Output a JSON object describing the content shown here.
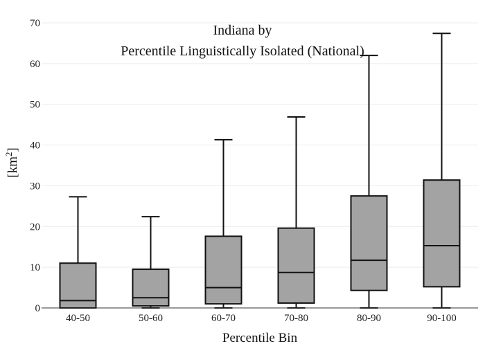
{
  "chart_data": {
    "type": "box",
    "title_lines": [
      "Indiana  by",
      "Percentile Linguistically Isolated (National)"
    ],
    "xlabel": "Percentile Bin",
    "ylabel_base": "[km",
    "ylabel_sup": "2",
    "ylabel_end": "]",
    "ylim": [
      0,
      70
    ],
    "yticks": [
      0,
      10,
      20,
      30,
      40,
      50,
      60,
      70
    ],
    "grid": true,
    "categories": [
      "40-50",
      "50-60",
      "60-70",
      "70-80",
      "80-90",
      "90-100"
    ],
    "boxes": [
      {
        "whisker_low": 0,
        "q1": 0.0,
        "median": 1.8,
        "q3": 11.0,
        "whisker_high": 27.3
      },
      {
        "whisker_low": 0,
        "q1": 0.5,
        "median": 2.5,
        "q3": 9.5,
        "whisker_high": 22.4
      },
      {
        "whisker_low": 0,
        "q1": 1.0,
        "median": 5.0,
        "q3": 17.6,
        "whisker_high": 41.3
      },
      {
        "whisker_low": 0,
        "q1": 1.2,
        "median": 8.7,
        "q3": 19.6,
        "whisker_high": 46.9
      },
      {
        "whisker_low": 0,
        "q1": 4.3,
        "median": 11.7,
        "q3": 27.5,
        "whisker_high": 62.0
      },
      {
        "whisker_low": 0,
        "q1": 5.2,
        "median": 15.3,
        "q3": 31.4,
        "whisker_high": 67.4
      }
    ],
    "colors": {
      "box_fill": "#a3a3a3",
      "stroke": "#111111",
      "grid": "#ececec"
    }
  }
}
